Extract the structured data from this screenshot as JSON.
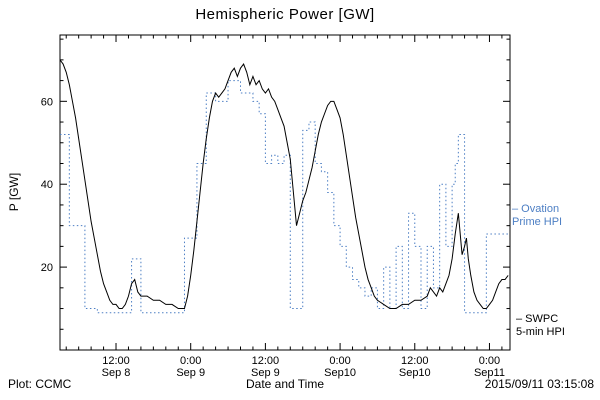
{
  "chart": {
    "title": "Hemispheric Power [GW]",
    "ylabel": "P [GW]",
    "xlabel": "Date and Time"
  },
  "legend": {
    "ovation": {
      "line1": "– Ovation",
      "line2": "Prime HPI",
      "color": "#4d7fc4"
    },
    "swpc": {
      "line1": "– SWPC",
      "line2": "5-min HPI",
      "color": "#000000"
    }
  },
  "footer": {
    "left": "Plot: CCMC",
    "timestamp": "2015/09/11 03:15:08"
  },
  "chart_data": {
    "type": "line",
    "title": "Hemispheric Power [GW]",
    "xlabel": "Date and Time",
    "ylabel": "P [GW]",
    "x_unit": "hours since 2015-09-08 00:00 UT",
    "xlim": [
      3,
      75.3
    ],
    "ylim": [
      0,
      76
    ],
    "grid": false,
    "legend_position": "right-outside",
    "x_ticks": [
      {
        "t": 12,
        "time": "12:00",
        "date": "Sep 8"
      },
      {
        "t": 24,
        "time": "0:00",
        "date": "Sep 9"
      },
      {
        "t": 36,
        "time": "12:00",
        "date": "Sep 9"
      },
      {
        "t": 48,
        "time": "0:00",
        "date": "Sep10"
      },
      {
        "t": 60,
        "time": "12:00",
        "date": "Sep10"
      },
      {
        "t": 72,
        "time": "0:00",
        "date": "Sep11"
      }
    ],
    "y_ticks": [
      {
        "v": 20,
        "label": "20"
      },
      {
        "v": 40,
        "label": "40"
      },
      {
        "v": 60,
        "label": "60"
      }
    ],
    "series": [
      {
        "name": "Ovation Prime HPI",
        "color": "#4d7fc4",
        "style": "step",
        "dash": "1.5,2.5",
        "width": 1,
        "points": [
          [
            3,
            52
          ],
          [
            4.5,
            30
          ],
          [
            7,
            10
          ],
          [
            9,
            9
          ],
          [
            14.5,
            22
          ],
          [
            16,
            9
          ],
          [
            23,
            27
          ],
          [
            25,
            45
          ],
          [
            26.5,
            62
          ],
          [
            28,
            60
          ],
          [
            30,
            65
          ],
          [
            32,
            62
          ],
          [
            34,
            60
          ],
          [
            35,
            57
          ],
          [
            36,
            45
          ],
          [
            37,
            47
          ],
          [
            38,
            45
          ],
          [
            39,
            47
          ],
          [
            40,
            10
          ],
          [
            42,
            53
          ],
          [
            43,
            55
          ],
          [
            44,
            45
          ],
          [
            45,
            43
          ],
          [
            46,
            38
          ],
          [
            47,
            30
          ],
          [
            48,
            25
          ],
          [
            49,
            20
          ],
          [
            50,
            17
          ],
          [
            51,
            15
          ],
          [
            52,
            13
          ],
          [
            53,
            15
          ],
          [
            54,
            10
          ],
          [
            55,
            20
          ],
          [
            56,
            10
          ],
          [
            57,
            25
          ],
          [
            58,
            10
          ],
          [
            59,
            33
          ],
          [
            60,
            25
          ],
          [
            61,
            10
          ],
          [
            62,
            25
          ],
          [
            63,
            15
          ],
          [
            64,
            40
          ],
          [
            65,
            25
          ],
          [
            66,
            40
          ],
          [
            66.5,
            45
          ],
          [
            67,
            52
          ],
          [
            68,
            9
          ],
          [
            71.5,
            28
          ],
          [
            75,
            28
          ]
        ]
      },
      {
        "name": "SWPC 5-min HPI",
        "color": "#000000",
        "style": "line",
        "dash": "",
        "width": 1,
        "points": [
          [
            3,
            70
          ],
          [
            3.5,
            69
          ],
          [
            4,
            67
          ],
          [
            4.5,
            64
          ],
          [
            5,
            60
          ],
          [
            5.5,
            56
          ],
          [
            6,
            51
          ],
          [
            6.5,
            46
          ],
          [
            7,
            41
          ],
          [
            7.5,
            36
          ],
          [
            8,
            31
          ],
          [
            8.5,
            27
          ],
          [
            9,
            23
          ],
          [
            9.5,
            19
          ],
          [
            10,
            16
          ],
          [
            10.5,
            14
          ],
          [
            11,
            12
          ],
          [
            11.5,
            11
          ],
          [
            12,
            11
          ],
          [
            12.5,
            10
          ],
          [
            13,
            10
          ],
          [
            13.5,
            11
          ],
          [
            14,
            13
          ],
          [
            14.5,
            16
          ],
          [
            15,
            17
          ],
          [
            15.5,
            14
          ],
          [
            16,
            13
          ],
          [
            17,
            13
          ],
          [
            18,
            12
          ],
          [
            19,
            12
          ],
          [
            20,
            11
          ],
          [
            21,
            11
          ],
          [
            22,
            10
          ],
          [
            23,
            10
          ],
          [
            23.5,
            13
          ],
          [
            24,
            18
          ],
          [
            24.5,
            24
          ],
          [
            25,
            31
          ],
          [
            25.5,
            38
          ],
          [
            26,
            45
          ],
          [
            26.5,
            51
          ],
          [
            27,
            56
          ],
          [
            27.5,
            60
          ],
          [
            28,
            62
          ],
          [
            28.5,
            61
          ],
          [
            29,
            62
          ],
          [
            29.5,
            63
          ],
          [
            30,
            65
          ],
          [
            30.5,
            67
          ],
          [
            31,
            68
          ],
          [
            31.5,
            66
          ],
          [
            32,
            68
          ],
          [
            32.5,
            69
          ],
          [
            33,
            67
          ],
          [
            33.5,
            64
          ],
          [
            34,
            66
          ],
          [
            34.5,
            64
          ],
          [
            35,
            65
          ],
          [
            35.5,
            63
          ],
          [
            36,
            62
          ],
          [
            36.5,
            63
          ],
          [
            37,
            61
          ],
          [
            37.5,
            60
          ],
          [
            38,
            58
          ],
          [
            38.5,
            56
          ],
          [
            39,
            54
          ],
          [
            39.5,
            50
          ],
          [
            40,
            46
          ],
          [
            40.5,
            38
          ],
          [
            41,
            30
          ],
          [
            41.5,
            33
          ],
          [
            42,
            36
          ],
          [
            42.5,
            38
          ],
          [
            43,
            41
          ],
          [
            43.5,
            44
          ],
          [
            44,
            48
          ],
          [
            44.5,
            52
          ],
          [
            45,
            55
          ],
          [
            45.5,
            57
          ],
          [
            46,
            59
          ],
          [
            46.5,
            60
          ],
          [
            47,
            60
          ],
          [
            47.5,
            58
          ],
          [
            48,
            56
          ],
          [
            48.5,
            52
          ],
          [
            49,
            47
          ],
          [
            49.5,
            42
          ],
          [
            50,
            37
          ],
          [
            50.5,
            32
          ],
          [
            51,
            28
          ],
          [
            51.5,
            24
          ],
          [
            52,
            20
          ],
          [
            52.5,
            17
          ],
          [
            53,
            15
          ],
          [
            53.5,
            13
          ],
          [
            54,
            12
          ],
          [
            55,
            11
          ],
          [
            56,
            10
          ],
          [
            57,
            10
          ],
          [
            58,
            11
          ],
          [
            59,
            11
          ],
          [
            60,
            12
          ],
          [
            61,
            12
          ],
          [
            62,
            13
          ],
          [
            62.5,
            15
          ],
          [
            63,
            14
          ],
          [
            63.5,
            13
          ],
          [
            64,
            15
          ],
          [
            64.5,
            14
          ],
          [
            65,
            16
          ],
          [
            65.5,
            18
          ],
          [
            66,
            22
          ],
          [
            66.5,
            28
          ],
          [
            67,
            33
          ],
          [
            67.3,
            28
          ],
          [
            67.6,
            23
          ],
          [
            68,
            25
          ],
          [
            68.3,
            27
          ],
          [
            68.6,
            22
          ],
          [
            69,
            18
          ],
          [
            69.5,
            14
          ],
          [
            70,
            12
          ],
          [
            70.5,
            11
          ],
          [
            71,
            10
          ],
          [
            71.5,
            10
          ],
          [
            72,
            11
          ],
          [
            72.5,
            12
          ],
          [
            73,
            14
          ],
          [
            73.5,
            16
          ],
          [
            74,
            17
          ],
          [
            74.5,
            17
          ],
          [
            75,
            18
          ]
        ]
      }
    ]
  }
}
